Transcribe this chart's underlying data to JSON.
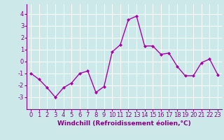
{
  "x": [
    0,
    1,
    2,
    3,
    4,
    5,
    6,
    7,
    8,
    9,
    10,
    11,
    12,
    13,
    14,
    15,
    16,
    17,
    18,
    19,
    20,
    21,
    22,
    23
  ],
  "y": [
    -1,
    -1.5,
    -2.2,
    -3.0,
    -2.2,
    -1.8,
    -1.0,
    -0.8,
    -2.6,
    -2.1,
    0.8,
    1.4,
    3.5,
    3.8,
    1.3,
    1.3,
    0.6,
    0.7,
    -0.4,
    -1.2,
    -1.2,
    -0.1,
    0.2,
    -1.1
  ],
  "line_color": "#aa00aa",
  "marker": "D",
  "marker_size": 2,
  "linewidth": 1.0,
  "bg_color": "#cce8e8",
  "grid_color": "#ffffff",
  "xlabel": "Windchill (Refroidissement éolien,°C)",
  "xlabel_color": "#880088",
  "xlabel_fontsize": 6.5,
  "tick_color": "#880088",
  "tick_fontsize": 6,
  "ylim": [
    -4,
    4.8
  ],
  "yticks": [
    -3,
    -2,
    -1,
    0,
    1,
    2,
    3,
    4
  ],
  "xlim": [
    -0.5,
    23.5
  ],
  "xticks": [
    0,
    1,
    2,
    3,
    4,
    5,
    6,
    7,
    8,
    9,
    10,
    11,
    12,
    13,
    14,
    15,
    16,
    17,
    18,
    19,
    20,
    21,
    22,
    23
  ]
}
